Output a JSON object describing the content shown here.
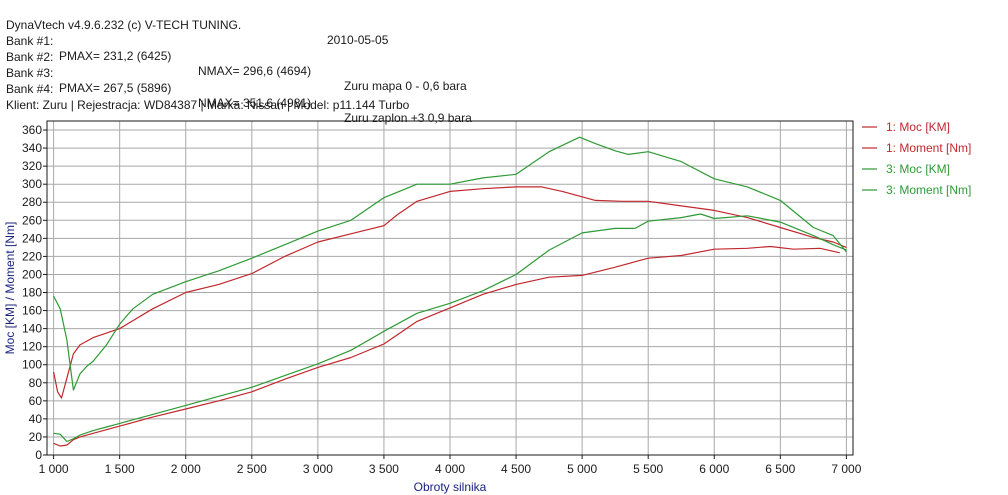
{
  "header": {
    "software": "DynaVtech v4.9.6.232 (c) V-TECH TUNING.",
    "date": "2010-05-05",
    "bank1": {
      "label": "Bank #1:",
      "pmax": "PMAX= 231,2 (6425)",
      "nmax": "NMAX= 296,6 (4694)",
      "note": "Zuru mapa 0 - 0,6 bara"
    },
    "bank2": {
      "label": "Bank #2:"
    },
    "bank3": {
      "label": "Bank #3:",
      "pmax": "PMAX= 267,5 (5896)",
      "nmax": "NMAX= 351,6 (4981)",
      "note": "Zuru zaplon +3 0,9 bara"
    },
    "bank4": {
      "label": "Bank #4:"
    },
    "client": "Klient: Zuru | Rejestracja: WD84387 | Marka: Nissan | Model: p11.144 Turbo"
  },
  "colors": {
    "red": "#c0282d",
    "green": "#2e9a35",
    "grid": "#a8a8a8",
    "axis": "#1a1a1a"
  },
  "chart_data": {
    "type": "line",
    "xlabel": "Obroty silnika",
    "ylabel": "Moc [KM] / Moment [Nm]",
    "xlim": [
      950,
      7050
    ],
    "ylim": [
      0,
      370
    ],
    "x_ticks": [
      1000,
      1500,
      2000,
      2500,
      3000,
      3500,
      4000,
      4500,
      5000,
      5500,
      6000,
      6500,
      7000
    ],
    "x_tick_labels": [
      "1 000",
      "1 500",
      "2 000",
      "2 500",
      "3 000",
      "3 500",
      "4 000",
      "4 500",
      "5 000",
      "5 500",
      "6 000",
      "6 500",
      "7 000"
    ],
    "y_ticks": [
      0,
      20,
      40,
      60,
      80,
      100,
      120,
      140,
      160,
      180,
      200,
      220,
      240,
      260,
      280,
      300,
      320,
      340,
      360
    ],
    "grid": true,
    "legend_position": "right",
    "series": [
      {
        "name": "1: Moc [KM]",
        "color": "#c0282d",
        "x": [
          1000,
          1050,
          1100,
          1150,
          1200,
          1300,
          1400,
          1500,
          1750,
          2000,
          2250,
          2500,
          2750,
          3000,
          3250,
          3500,
          3750,
          4000,
          4250,
          4500,
          4750,
          5000,
          5250,
          5500,
          5750,
          6000,
          6250,
          6425,
          6600,
          6800,
          6950
        ],
        "y": [
          13,
          10,
          11,
          17,
          20,
          24,
          28,
          32,
          42,
          51,
          60,
          70,
          84,
          97,
          108,
          123,
          148,
          163,
          178,
          189,
          197,
          199,
          208,
          218,
          221,
          228,
          229,
          231,
          228,
          229,
          224
        ]
      },
      {
        "name": "1: Moment [Nm]",
        "color": "#c0282d",
        "x": [
          1000,
          1030,
          1060,
          1100,
          1150,
          1200,
          1300,
          1400,
          1500,
          1750,
          2000,
          2250,
          2500,
          2750,
          3000,
          3250,
          3500,
          3600,
          3750,
          4000,
          4250,
          4500,
          4694,
          4850,
          5000,
          5100,
          5300,
          5500,
          5750,
          6000,
          6250,
          6500,
          6750,
          6900,
          7000
        ],
        "y": [
          92,
          70,
          63,
          85,
          112,
          122,
          130,
          135,
          140,
          162,
          180,
          189,
          201,
          220,
          236,
          245,
          254,
          266,
          281,
          292,
          295,
          297,
          297,
          292,
          286,
          282,
          281,
          281,
          276,
          271,
          263,
          252,
          241,
          236,
          230
        ]
      },
      {
        "name": "3: Moc [KM]",
        "color": "#2e9a35",
        "x": [
          1000,
          1050,
          1100,
          1150,
          1200,
          1300,
          1400,
          1500,
          1750,
          2000,
          2250,
          2500,
          2750,
          3000,
          3250,
          3500,
          3750,
          4000,
          4250,
          4500,
          4750,
          5000,
          5250,
          5400,
          5500,
          5750,
          5896,
          6000,
          6250,
          6500,
          6750,
          6900,
          7000
        ],
        "y": [
          24,
          23,
          15,
          18,
          22,
          27,
          31,
          35,
          45,
          55,
          65,
          75,
          88,
          101,
          116,
          137,
          157,
          168,
          182,
          200,
          227,
          246,
          251,
          251,
          259,
          263,
          267,
          262,
          265,
          258,
          243,
          233,
          227
        ]
      },
      {
        "name": "3: Moment [Nm]",
        "color": "#2e9a35",
        "x": [
          1000,
          1050,
          1100,
          1150,
          1200,
          1250,
          1300,
          1400,
          1500,
          1600,
          1750,
          2000,
          2250,
          2500,
          2750,
          3000,
          3250,
          3500,
          3750,
          4000,
          4250,
          4500,
          4750,
          4981,
          5100,
          5250,
          5350,
          5500,
          5750,
          6000,
          6250,
          6500,
          6750,
          6900,
          7000
        ],
        "y": [
          176,
          162,
          128,
          72,
          90,
          98,
          104,
          122,
          145,
          162,
          178,
          192,
          204,
          218,
          233,
          248,
          260,
          285,
          300,
          300,
          307,
          311,
          336,
          352,
          345,
          337,
          333,
          336,
          325,
          306,
          297,
          282,
          252,
          243,
          225
        ]
      }
    ]
  }
}
